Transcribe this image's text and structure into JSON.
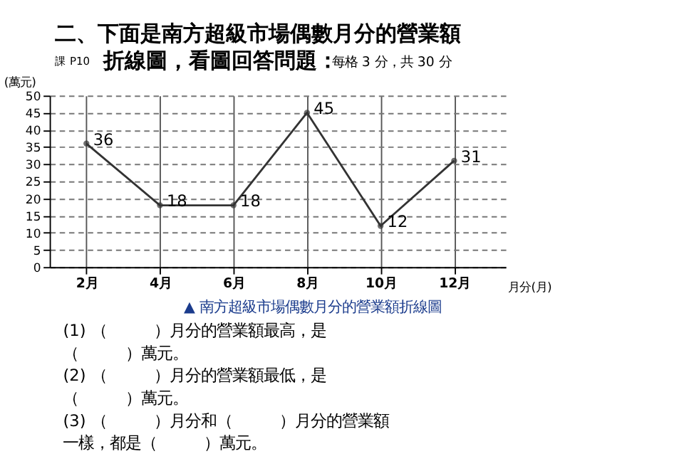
{
  "chart_data": {
    "type": "line",
    "title": "二、下面是南方超級市場偶數月分的營業額折線圖，看圖回答問題：",
    "subtitle": "每格 3 分，共 30 分",
    "ylabel": "(萬元)",
    "xlabel": "月分(月)",
    "categories": [
      "2月",
      "4月",
      "6月",
      "8月",
      "10月",
      "12月"
    ],
    "series": [
      {
        "color": "#333333",
        "values": [
          36,
          18,
          18,
          45,
          12,
          31
        ]
      }
    ],
    "ylim": [
      0,
      50
    ],
    "yticks": [
      0,
      5,
      10,
      15,
      20,
      25,
      30,
      35,
      40,
      45,
      50
    ],
    "grid": true,
    "marker": "circle",
    "line_style": "solid",
    "data_labels": true,
    "legend": false,
    "annotations": [
      "課 P10",
      "▲ 南方超級市場偶數月分的營業額折線圖",
      "(1) （　　　）月分的營業額最高，是",
      "　　（　　　）萬元。",
      "(2) （　　　）月分的營業額最低，是",
      "　　（　　　）萬元。",
      "(3) （　　　）月分和（　　　）月分的營業額",
      "　一樣，都是（　　　）萬元。"
    ]
  }
}
